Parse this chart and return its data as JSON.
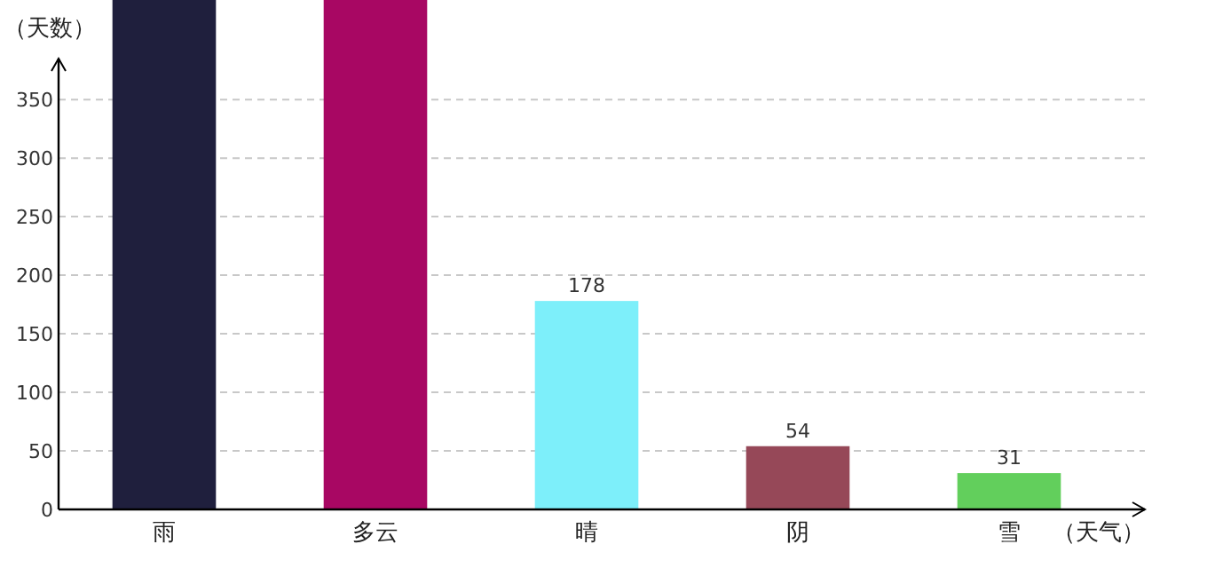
{
  "chart_data": {
    "type": "bar",
    "ylabel": "（天数）",
    "xlabel": "（天气）",
    "categories": [
      "雨",
      "多云",
      "晴",
      "阴",
      "雪"
    ],
    "values": [
      435,
      435,
      178,
      54,
      31
    ],
    "colors": [
      "#1f1f3d",
      "#a80763",
      "#7deffa",
      "#964858",
      "#62cf5c"
    ],
    "value_labels": [
      null,
      null,
      "178",
      "54",
      "31"
    ],
    "ylim": [
      0,
      435
    ],
    "yticks": [
      0,
      50,
      100,
      150,
      200,
      250,
      300,
      350
    ],
    "grid": "y"
  }
}
